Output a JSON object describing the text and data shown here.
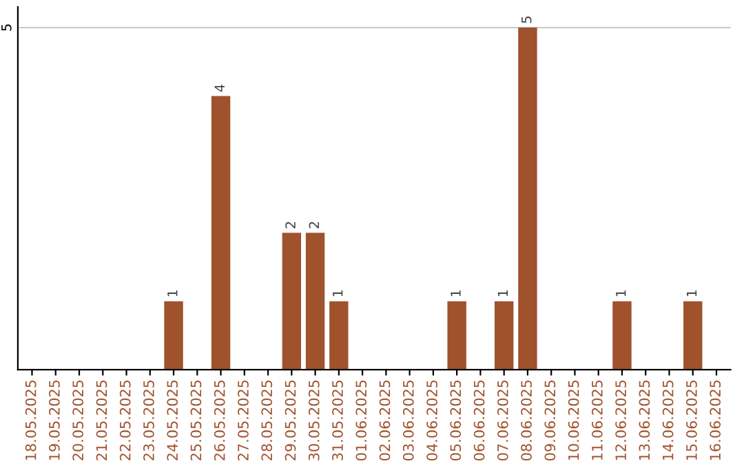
{
  "chart_data": {
    "type": "bar",
    "categories": [
      "18.05.2025",
      "19.05.2025",
      "20.05.2025",
      "21.05.2025",
      "22.05.2025",
      "23.05.2025",
      "24.05.2025",
      "25.05.2025",
      "26.05.2025",
      "27.05.2025",
      "28.05.2025",
      "29.05.2025",
      "30.05.2025",
      "31.05.2025",
      "01.06.2025",
      "02.06.2025",
      "03.06.2025",
      "04.06.2025",
      "05.06.2025",
      "06.06.2025",
      "07.06.2025",
      "08.06.2025",
      "09.06.2025",
      "10.06.2025",
      "11.06.2025",
      "12.06.2025",
      "13.06.2025",
      "14.06.2025",
      "15.06.2025",
      "16.06.2025"
    ],
    "values": [
      0,
      0,
      0,
      0,
      0,
      0,
      1,
      0,
      4,
      0,
      0,
      2,
      2,
      1,
      0,
      0,
      0,
      0,
      1,
      0,
      1,
      5,
      0,
      0,
      0,
      1,
      0,
      0,
      1,
      0
    ],
    "value_labels": [
      null,
      null,
      null,
      null,
      null,
      null,
      "1",
      null,
      "4",
      null,
      null,
      "2",
      "2",
      "1",
      null,
      null,
      null,
      null,
      "1",
      null,
      "1",
      "5",
      null,
      null,
      null,
      "1",
      null,
      null,
      "1",
      null
    ],
    "color": "#a0522d",
    "ylim": [
      0,
      5.3
    ],
    "yticks": [
      5
    ],
    "grid": "y"
  }
}
